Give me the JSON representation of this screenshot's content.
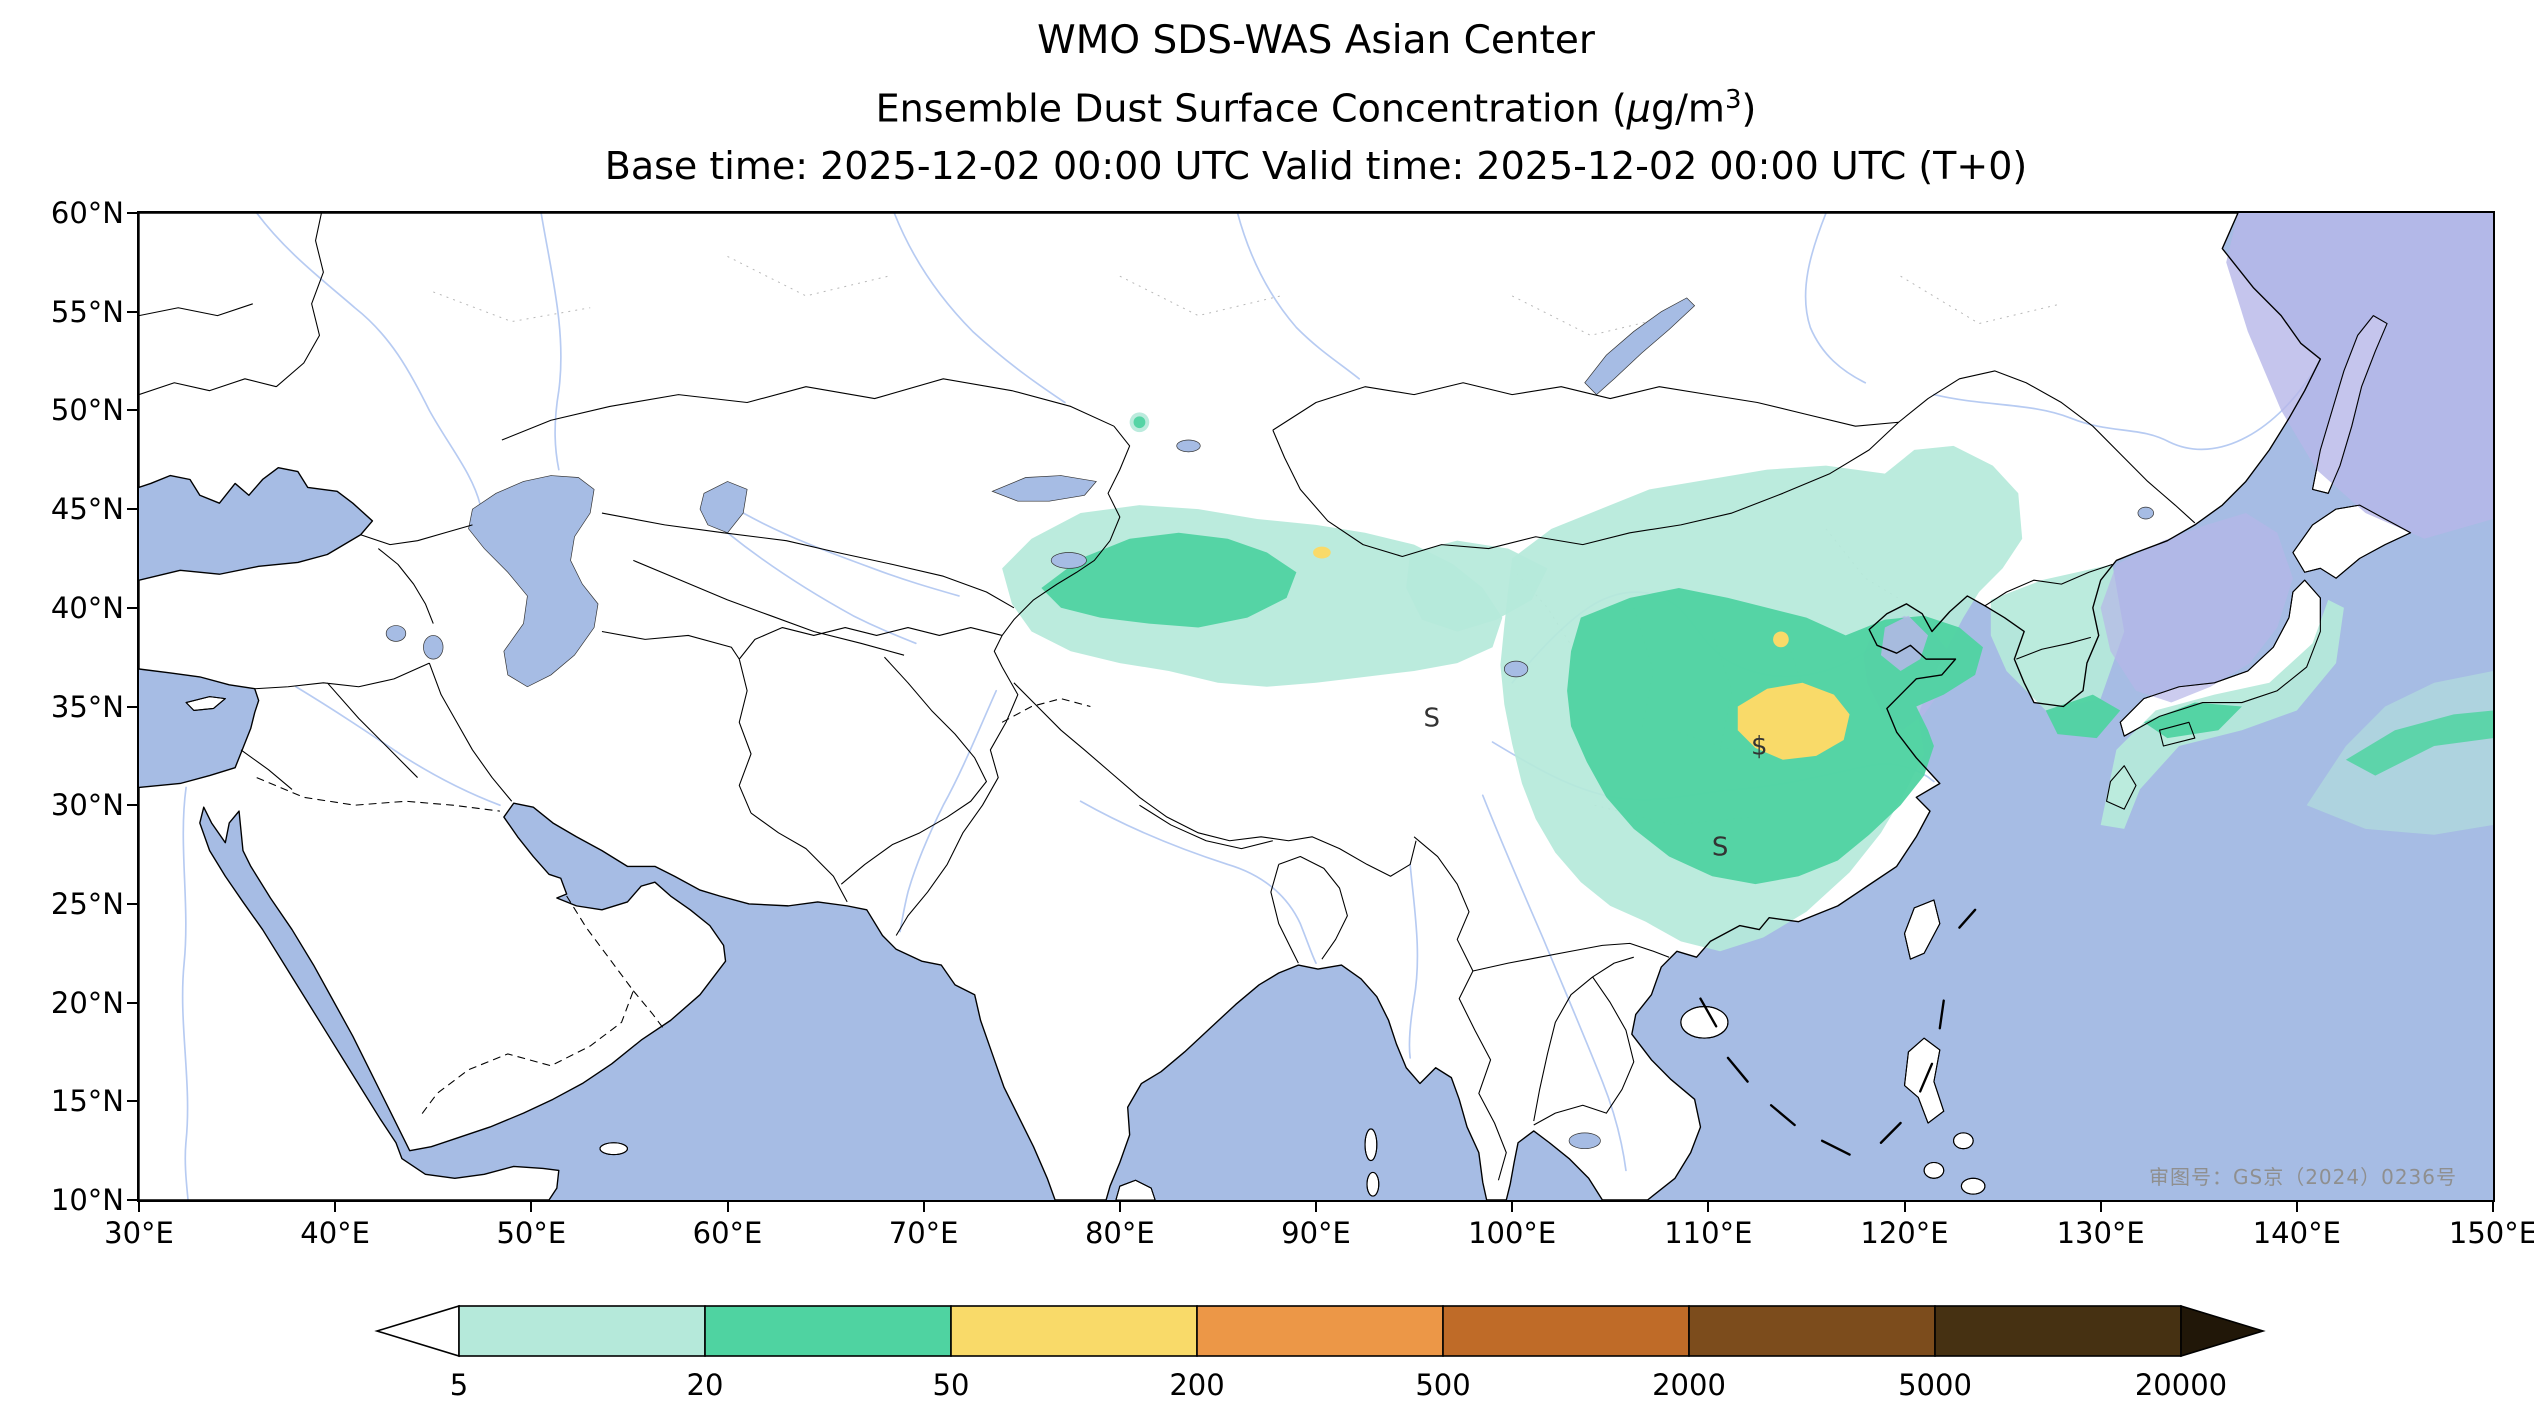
{
  "titles": {
    "line1": "WMO SDS-WAS Asian Center",
    "line2_pre": "Ensemble Dust Surface Concentration (",
    "line2_mu": "μ",
    "line2_mid": "g/m",
    "line2_sup": "3",
    "line2_post": ")",
    "line3": "Base time: 2025-12-02 00:00 UTC Valid time: 2025-12-02 00:00 UTC (T+0)"
  },
  "axes": {
    "x_ticks": [
      "30°E",
      "40°E",
      "50°E",
      "60°E",
      "70°E",
      "80°E",
      "90°E",
      "100°E",
      "110°E",
      "120°E",
      "130°E",
      "140°E",
      "150°E"
    ],
    "y_ticks": [
      "60°N",
      "55°N",
      "50°N",
      "45°N",
      "40°N",
      "35°N",
      "30°N",
      "25°N",
      "20°N",
      "15°N",
      "10°N"
    ],
    "x_range": [
      30,
      150
    ],
    "y_range": [
      10,
      60
    ]
  },
  "colorbar": {
    "levels": [
      "5",
      "20",
      "50",
      "200",
      "500",
      "2000",
      "5000",
      "20000"
    ],
    "colors": {
      "under": "#ffffff",
      "segments": [
        "#b5e9da",
        "#4fd3a1",
        "#f9da69",
        "#ec9747",
        "#bf6b28",
        "#7c4c1c",
        "#463112"
      ],
      "over": "#211708"
    }
  },
  "map": {
    "ocean_color": "#a6bce4",
    "land_color": "#ffffff",
    "dust_over_ocean_color": "#b6b7e8",
    "annotations": [
      {
        "text": "S",
        "lon": 95.9,
        "lat": 34.3
      },
      {
        "text": "S",
        "lon": 110.6,
        "lat": 27.8
      },
      {
        "text": "$",
        "lon": 112.6,
        "lat": 32.9
      }
    ],
    "watermark": "审图号：GS京（2024）0236号"
  }
}
